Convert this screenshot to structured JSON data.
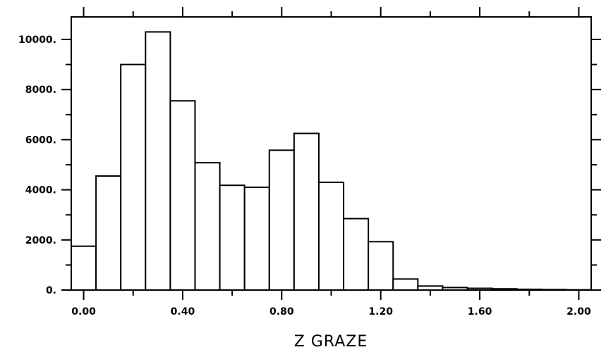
{
  "chart_data": {
    "type": "bar",
    "xlabel": "Z GRAZE",
    "ylabel": "",
    "title": "",
    "bin_edges": [
      -0.05,
      0.05,
      0.15,
      0.25,
      0.35,
      0.45,
      0.55,
      0.65,
      0.75,
      0.85,
      0.95,
      1.05,
      1.15,
      1.25,
      1.35,
      1.45,
      1.55,
      1.65,
      1.75,
      1.85,
      1.95,
      2.05
    ],
    "values": [
      1750,
      4550,
      9000,
      10300,
      7550,
      5080,
      4180,
      4100,
      5580,
      6250,
      4300,
      2850,
      1930,
      440,
      160,
      100,
      70,
      50,
      30,
      20,
      10
    ],
    "xlim": [
      -0.05,
      2.05
    ],
    "ylim": [
      0,
      10900
    ],
    "x_ticks": [
      0.0,
      0.4,
      0.8,
      1.2,
      1.6,
      2.0
    ],
    "x_tick_labels": [
      "0.00",
      "0.40",
      "0.80",
      "1.20",
      "1.60",
      "2.00"
    ],
    "y_ticks": [
      0,
      2000,
      4000,
      6000,
      8000,
      10000
    ],
    "y_tick_labels": [
      "0.",
      "2000.",
      "4000.",
      "6000.",
      "8000.",
      "10000."
    ],
    "x_minor_step": 0.2,
    "y_minor_step": 1000,
    "grid": false,
    "legend": "none"
  }
}
